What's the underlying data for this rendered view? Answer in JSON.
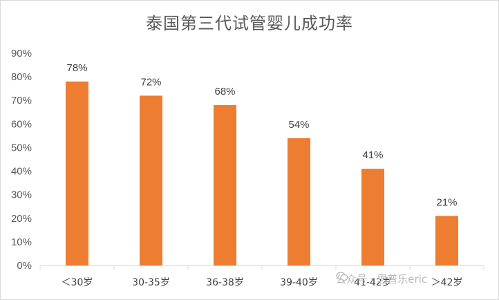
{
  "chart_data": {
    "type": "bar",
    "title": "泰国第三代试管婴儿成功率",
    "categories": [
      "＜30岁",
      "30-35岁",
      "36-38岁",
      "39-40岁",
      "41-42岁",
      "＞42岁"
    ],
    "values": [
      78,
      72,
      68,
      54,
      41,
      21
    ],
    "data_labels": [
      "78%",
      "72%",
      "68%",
      "54%",
      "41%",
      "21%"
    ],
    "ylim": [
      0,
      90
    ],
    "yticks": [
      "0%",
      "10%",
      "20%",
      "30%",
      "40%",
      "50%",
      "60%",
      "70%",
      "80%",
      "90%"
    ],
    "grid": false,
    "legend": "none",
    "bar_color": "#ED7D31"
  },
  "watermark": {
    "text": "公众号 · 思普乐eric",
    "icon": "wechat-icon"
  }
}
